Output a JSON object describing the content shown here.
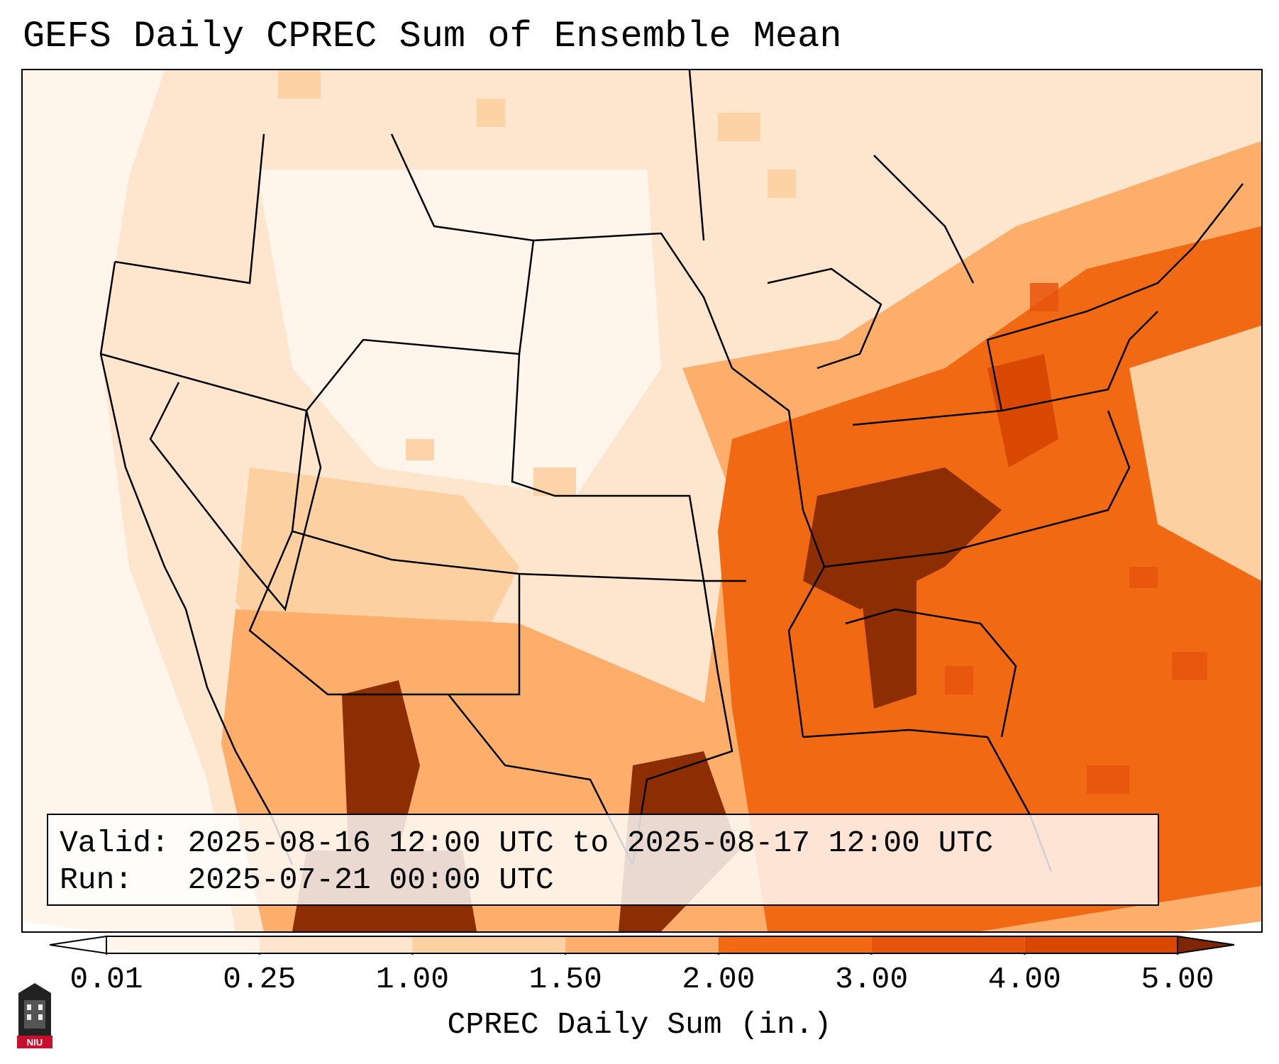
{
  "title": "GEFS Daily CPREC Sum of Ensemble Mean",
  "info": {
    "valid_line": "Valid: 2025-08-16 12:00 UTC to 2025-08-17 12:00 UTC",
    "run_line": "Run:   2025-07-21 00:00 UTC"
  },
  "colorbar": {
    "label": "CPREC Daily Sum (in.)",
    "ticks": [
      "0.01",
      "0.25",
      "1.00",
      "1.50",
      "2.00",
      "3.00",
      "4.00",
      "5.00"
    ],
    "colors": [
      "#fff5eb",
      "#fee6ce",
      "#fdd0a2",
      "#fdae6b",
      "#f16913",
      "#e6550d",
      "#d94801",
      "#8c2d04"
    ],
    "under_color": "#ffffff",
    "over_color": "#7f2704"
  },
  "logo": {
    "text": "NIU"
  },
  "map": {
    "region": "Contiguous United States",
    "heavy_regions": [
      "Tennessee Valley",
      "Gulf Coast of Texas",
      "Sierra Madre Occidental, Mexico",
      "Pennsylvania",
      "Alabama"
    ]
  }
}
